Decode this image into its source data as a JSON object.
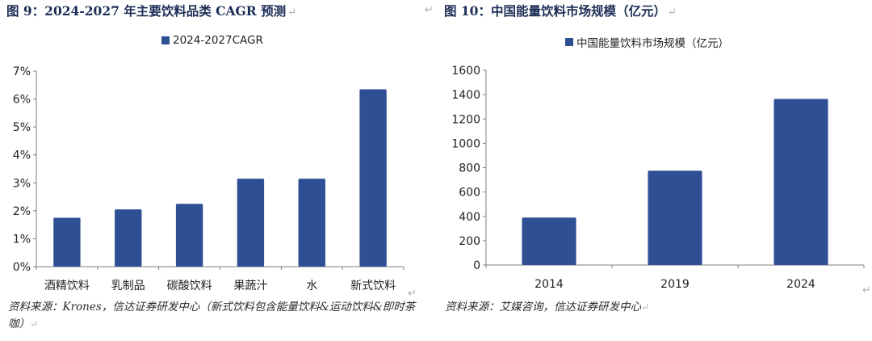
{
  "left_figure": {
    "title": "图 9：2024-2027 年主要饮料品类 CAGR 预测",
    "source": "资料来源：Krones，信达证券研发中心（新式饮料包含能量饮料&运动饮料&即时茶咖）",
    "chart_data": {
      "type": "bar",
      "title": "",
      "xlabel": "",
      "ylabel": "",
      "categories": [
        "酒精饮料",
        "乳制品",
        "碳酸饮料",
        "果蔬汁",
        "水",
        "新式饮料"
      ],
      "series": [
        {
          "name": "2024-2027CAGR",
          "values": [
            1.75,
            2.05,
            2.25,
            3.15,
            3.15,
            6.35
          ]
        }
      ],
      "ylim": [
        0,
        7
      ],
      "yticks": [
        "0%",
        "1%",
        "2%",
        "3%",
        "4%",
        "5%",
        "6%",
        "7%"
      ],
      "y_unit": "%",
      "grid": false,
      "legend_position": "top-center",
      "colors": {
        "bar": "#2e4f93"
      }
    }
  },
  "right_figure": {
    "title": "图 10：中国能量饮料市场规模（亿元）",
    "source": "资料来源：艾媒咨询，信达证券研发中心",
    "chart_data": {
      "type": "bar",
      "title": "",
      "xlabel": "",
      "ylabel": "",
      "categories": [
        "2014",
        "2019",
        "2024"
      ],
      "series": [
        {
          "name": "中国能量饮料市场规模（亿元）",
          "values": [
            390,
            775,
            1365
          ]
        }
      ],
      "ylim": [
        0,
        1600
      ],
      "yticks": [
        "0",
        "200",
        "400",
        "600",
        "800",
        "1000",
        "1200",
        "1400",
        "1600"
      ],
      "grid": false,
      "legend_position": "top-center",
      "colors": {
        "bar": "#2e4f93"
      }
    }
  },
  "return_mark": "↵"
}
